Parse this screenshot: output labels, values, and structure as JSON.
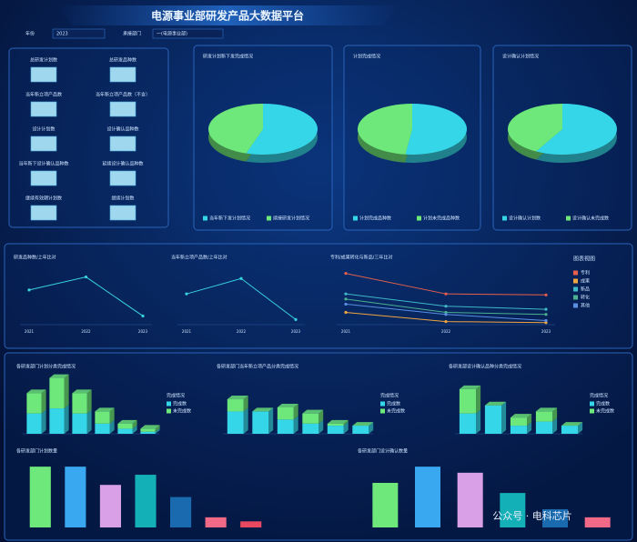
{
  "header": {
    "title": "电源事业部研发产品大数据平台"
  },
  "filters": [
    {
      "label": "年份",
      "value": "2023"
    },
    {
      "label": "承接部门",
      "value": "一(电源事业部)"
    }
  ],
  "kpis": [
    "总研发计划数",
    "总研发品种数",
    "当年新立项产品数",
    "当年新立项产品数（不含）",
    "设计计划数",
    "设计确认品种数",
    "当年新下设计确认品种数",
    "延续设计确认品种数",
    "继续有效期计划数",
    "继续计划数"
  ],
  "chart_data": [
    {
      "type": "pie",
      "title": "研发计划新下发完成情况",
      "categories": [
        "当年新下发计划情况",
        "续接研发计划情况"
      ],
      "values": [
        55,
        45
      ],
      "colors": [
        "#35d6e8",
        "#6ee87a"
      ]
    },
    {
      "type": "pie",
      "title": "计划完成情况",
      "categories": [
        "计划完成品种数",
        "计划未完成品种数"
      ],
      "values": [
        52,
        48
      ],
      "colors": [
        "#35d6e8",
        "#6ee87a"
      ]
    },
    {
      "type": "pie",
      "title": "设计确认计划情况",
      "categories": [
        "设计确认计划数",
        "设计确认未完成数"
      ],
      "values": [
        58,
        42
      ],
      "colors": [
        "#35d6e8",
        "#6ee87a"
      ]
    },
    {
      "type": "line",
      "title": "研发品种数/上年比对",
      "x": [
        "2021",
        "2022",
        "2023"
      ],
      "values": [
        40,
        55,
        10
      ],
      "color": "#38d3e0",
      "ylim": [
        0,
        65
      ]
    },
    {
      "type": "line",
      "title": "当年新立项产品数/上年比对",
      "x": [
        "2021",
        "2022",
        "2023"
      ],
      "values": [
        30,
        45,
        5
      ],
      "color": "#38d3e0",
      "ylim": [
        0,
        55
      ]
    },
    {
      "type": "line",
      "title": "专利/成果转化与新品/三年比对",
      "x": [
        "2021",
        "2022",
        "2023"
      ],
      "legend_title": "图表视图",
      "series": [
        {
          "name": "专利",
          "color": "#e8604c",
          "values": [
            50,
            30,
            29
          ]
        },
        {
          "name": "成果",
          "color": "#f0a640",
          "values": [
            12,
            3,
            2
          ]
        },
        {
          "name": "新品",
          "color": "#3fb8c8",
          "values": [
            30,
            18,
            15
          ]
        },
        {
          "name": "转化",
          "color": "#4ab090",
          "values": [
            25,
            12,
            10
          ]
        },
        {
          "name": "其他",
          "color": "#5a8ee0",
          "values": [
            20,
            10,
            4
          ]
        }
      ],
      "ylim": [
        0,
        55
      ]
    },
    {
      "type": "stacked_bar",
      "title": "各研发部门计划分类完成情况",
      "legend_title": "完成情况",
      "categories": [
        null,
        null,
        null,
        null,
        null,
        null
      ],
      "series": [
        {
          "name": "完成数",
          "color": "#35d6e8",
          "values": [
            20,
            25,
            20,
            10,
            5,
            2
          ]
        },
        {
          "name": "未完成数",
          "color": "#6ee87a",
          "values": [
            20,
            30,
            20,
            12,
            5,
            3
          ]
        }
      ],
      "ylim": [
        0,
        60
      ]
    },
    {
      "type": "stacked_bar",
      "title": "各研发部门当年新立项产品分类完成情况",
      "legend_title": "完成情况",
      "categories": [
        null,
        null,
        null,
        null,
        null,
        null
      ],
      "series": [
        {
          "name": "完成数",
          "color": "#35d6e8",
          "values": [
            22,
            22,
            14,
            10,
            8,
            8
          ]
        },
        {
          "name": "未完成数",
          "color": "#6ee87a",
          "values": [
            12,
            0,
            12,
            10,
            2,
            0
          ]
        }
      ],
      "ylim": [
        0,
        60
      ]
    },
    {
      "type": "stacked_bar",
      "title": "各研发部设计确认品种分类完成情况",
      "legend_title": "完成情况",
      "categories": [
        null,
        null,
        null,
        null,
        null
      ],
      "series": [
        {
          "name": "完成数",
          "color": "#35d6e8",
          "values": [
            20,
            28,
            8,
            12,
            8
          ]
        },
        {
          "name": "未完成数",
          "color": "#6ee87a",
          "values": [
            24,
            0,
            8,
            10,
            0
          ]
        }
      ],
      "ylim": [
        0,
        60
      ]
    },
    {
      "type": "bar",
      "title": "各研发部门计划数量",
      "categories": [
        null,
        null,
        null,
        null,
        null,
        null,
        null
      ],
      "values": [
        30,
        30,
        21,
        26,
        15,
        5,
        3
      ],
      "colors": [
        "#6ee87a",
        "#3aa8f0",
        "#d9a0e8",
        "#14b0b8",
        "#1a6ab0",
        "#f06a88",
        "#e84860"
      ],
      "ylim": [
        0,
        35
      ]
    },
    {
      "type": "bar",
      "title": "各研发部门设计确认数量",
      "categories": [
        null,
        null,
        null,
        null,
        null,
        null
      ],
      "values": [
        22,
        30,
        27,
        17,
        9,
        5
      ],
      "colors": [
        "#6ee87a",
        "#3aa8f0",
        "#d9a0e8",
        "#14b0b8",
        "#1a6ab0",
        "#f06a88"
      ],
      "ylim": [
        0,
        35
      ]
    }
  ],
  "watermark": "公众号 · 电科芯片"
}
